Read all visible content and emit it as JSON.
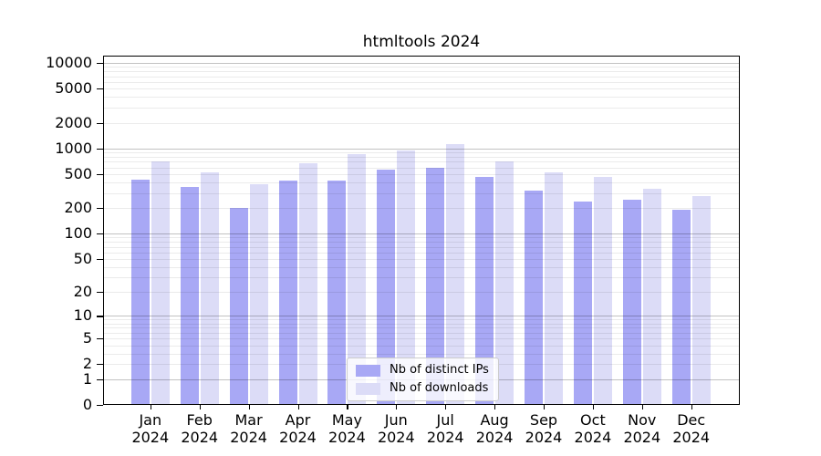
{
  "chart_data": {
    "type": "bar",
    "title": "htmltools 2024",
    "categories": [
      "Jan 2024",
      "Feb 2024",
      "Mar 2024",
      "Apr 2024",
      "May 2024",
      "Jun 2024",
      "Jul 2024",
      "Aug 2024",
      "Sep 2024",
      "Oct 2024",
      "Nov 2024",
      "Dec 2024"
    ],
    "series": [
      {
        "name": "Nb of distinct IPs",
        "color": "#a8a8f5",
        "values": [
          430,
          350,
          200,
          420,
          420,
          570,
          600,
          460,
          320,
          240,
          250,
          190
        ]
      },
      {
        "name": "Nb of downloads",
        "color": "#dcdcf7",
        "values": [
          710,
          530,
          380,
          680,
          860,
          950,
          1120,
          700,
          530,
          470,
          340,
          280
        ]
      }
    ],
    "xlabel": "",
    "ylabel": "",
    "yscale": "log1p",
    "ytick_values": [
      10000,
      5000,
      2000,
      1000,
      500,
      200,
      100,
      50,
      20,
      10,
      5,
      2,
      1,
      0
    ],
    "ylim": [
      0,
      12200
    ],
    "grid": true,
    "legend_position": "lower center",
    "colors": {
      "background": "#ffffff",
      "grid_major": "#c6c6c6",
      "grid_minor": "#ececec",
      "axis": "#000000"
    }
  }
}
